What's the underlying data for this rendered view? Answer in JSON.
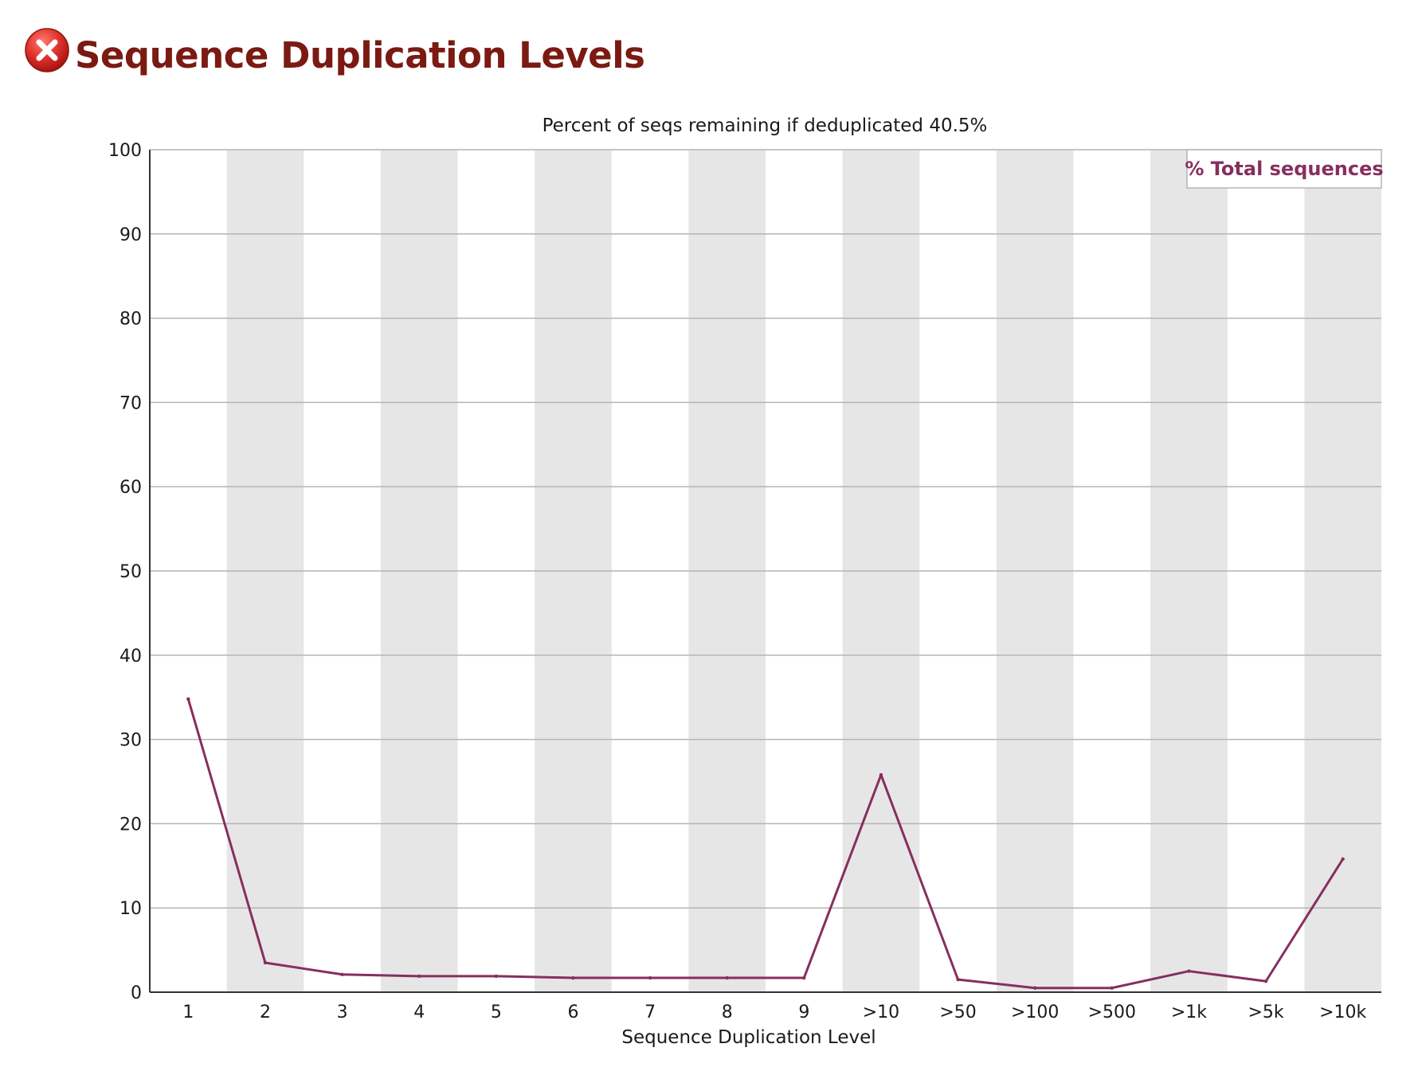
{
  "header": {
    "title": "Sequence Duplication Levels",
    "status_icon": "error-x-icon",
    "status_color": "#e0322c"
  },
  "chart_data": {
    "type": "line",
    "title": "Percent of seqs remaining if deduplicated 40.5%",
    "xlabel": "Sequence Duplication Level",
    "ylabel": "",
    "ylim": [
      0,
      100
    ],
    "yticks": [
      0,
      10,
      20,
      30,
      40,
      50,
      60,
      70,
      80,
      90,
      100
    ],
    "categories": [
      "1",
      "2",
      "3",
      "4",
      "5",
      "6",
      "7",
      "8",
      "9",
      ">10",
      ">50",
      ">100",
      ">500",
      ">1k",
      ">5k",
      ">10k"
    ],
    "series": [
      {
        "name": "% Total sequences",
        "color": "#862f5f",
        "values": [
          34.8,
          3.5,
          2.1,
          1.9,
          1.9,
          1.7,
          1.7,
          1.7,
          1.7,
          25.8,
          1.5,
          0.5,
          0.5,
          2.5,
          1.3,
          15.8
        ]
      }
    ],
    "grid": true,
    "alternating_bands": true,
    "legend_position": "top-right",
    "colors": {
      "band": "#e6e6e6",
      "gridline": "#b4b4b4",
      "axis": "#333333"
    }
  }
}
